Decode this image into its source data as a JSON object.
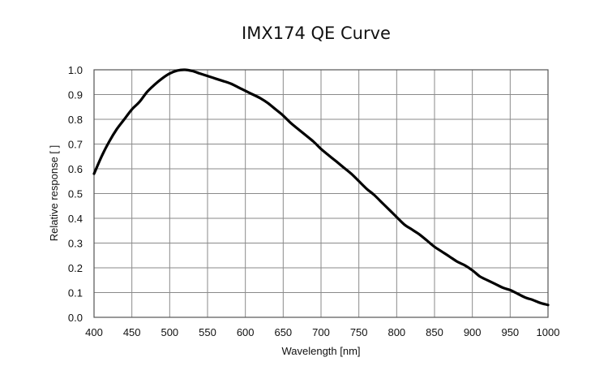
{
  "chart_data": {
    "type": "line",
    "title": "IMX174 QE Curve",
    "xlabel": "Wavelength [nm]",
    "ylabel": "Relative response [ ]",
    "xlim": [
      400,
      1000
    ],
    "ylim": [
      0.0,
      1.0
    ],
    "x_ticks": [
      "400",
      "450",
      "500",
      "550",
      "600",
      "650",
      "700",
      "750",
      "800",
      "850",
      "900",
      "950",
      "1000"
    ],
    "y_ticks": [
      "0.0",
      "0.1",
      "0.2",
      "0.3",
      "0.4",
      "0.5",
      "0.6",
      "0.7",
      "0.8",
      "0.9",
      "1.0"
    ],
    "grid": true,
    "series": [
      {
        "color": "#000000",
        "x": [
          400,
          410,
          420,
          430,
          440,
          450,
          460,
          470,
          480,
          490,
          500,
          510,
          520,
          530,
          540,
          550,
          560,
          570,
          580,
          590,
          600,
          610,
          620,
          630,
          640,
          650,
          660,
          670,
          680,
          690,
          700,
          710,
          720,
          730,
          740,
          750,
          760,
          770,
          780,
          790,
          800,
          810,
          820,
          830,
          840,
          850,
          860,
          870,
          880,
          890,
          900,
          910,
          920,
          930,
          940,
          950,
          960,
          970,
          980,
          990,
          1000
        ],
        "y": [
          0.58,
          0.65,
          0.71,
          0.76,
          0.8,
          0.84,
          0.87,
          0.91,
          0.94,
          0.965,
          0.985,
          0.997,
          1.0,
          0.995,
          0.985,
          0.975,
          0.965,
          0.955,
          0.945,
          0.93,
          0.915,
          0.9,
          0.885,
          0.865,
          0.84,
          0.815,
          0.785,
          0.76,
          0.735,
          0.71,
          0.68,
          0.655,
          0.63,
          0.605,
          0.58,
          0.55,
          0.52,
          0.495,
          0.465,
          0.435,
          0.405,
          0.375,
          0.355,
          0.335,
          0.31,
          0.285,
          0.265,
          0.245,
          0.225,
          0.21,
          0.19,
          0.165,
          0.15,
          0.135,
          0.12,
          0.11,
          0.095,
          0.08,
          0.07,
          0.058,
          0.05
        ]
      }
    ]
  }
}
